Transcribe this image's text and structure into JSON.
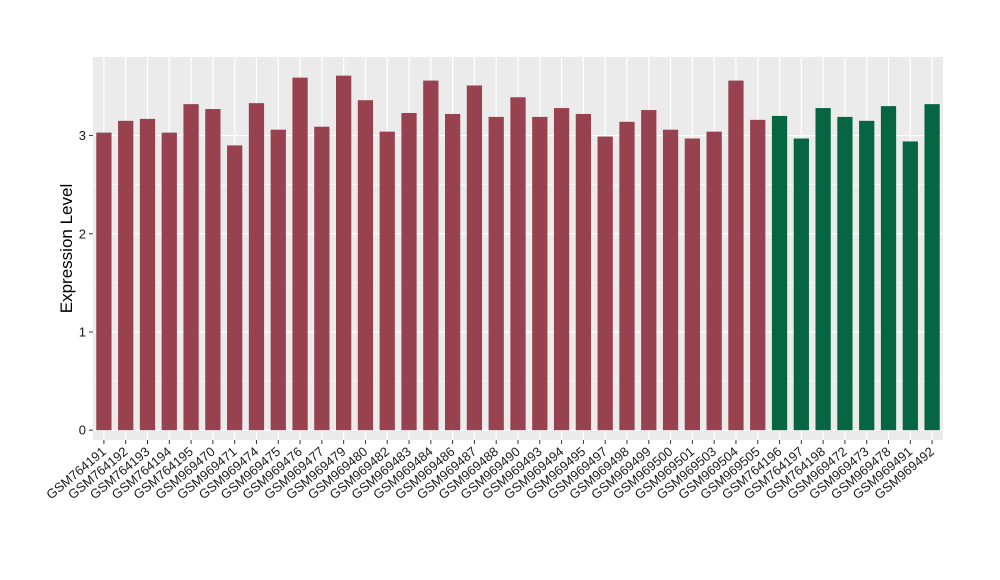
{
  "chart_data": {
    "type": "bar",
    "title": "",
    "xlabel": "",
    "ylabel": "Expression Level",
    "ylim": [
      -0.1,
      3.8
    ],
    "yticks": [
      0,
      1,
      2,
      3
    ],
    "grid": true,
    "legend": "none",
    "categories": [
      "GSM764191",
      "GSM764192",
      "GSM764193",
      "GSM764194",
      "GSM764195",
      "GSM969470",
      "GSM969471",
      "GSM969474",
      "GSM969475",
      "GSM969476",
      "GSM969477",
      "GSM969479",
      "GSM969480",
      "GSM969482",
      "GSM969483",
      "GSM969484",
      "GSM969486",
      "GSM969487",
      "GSM969488",
      "GSM969490",
      "GSM969493",
      "GSM969494",
      "GSM969495",
      "GSM969497",
      "GSM969498",
      "GSM969499",
      "GSM969500",
      "GSM969501",
      "GSM969503",
      "GSM969504",
      "GSM969505",
      "GSM764196",
      "GSM764197",
      "GSM764198",
      "GSM969472",
      "GSM969473",
      "GSM969478",
      "GSM969491",
      "GSM969492"
    ],
    "values": [
      3.03,
      3.15,
      3.17,
      3.03,
      3.32,
      3.27,
      2.9,
      3.33,
      3.06,
      3.59,
      3.09,
      3.61,
      3.36,
      3.04,
      3.23,
      3.56,
      3.22,
      3.51,
      3.19,
      3.39,
      3.19,
      3.28,
      3.22,
      2.99,
      3.14,
      3.26,
      3.06,
      2.97,
      3.04,
      3.56,
      3.16,
      3.2,
      2.97,
      3.28,
      3.19,
      3.15,
      3.3,
      2.94,
      3.32
    ],
    "groups": [
      "a",
      "a",
      "a",
      "a",
      "a",
      "a",
      "a",
      "a",
      "a",
      "a",
      "a",
      "a",
      "a",
      "a",
      "a",
      "a",
      "a",
      "a",
      "a",
      "a",
      "a",
      "a",
      "a",
      "a",
      "a",
      "a",
      "a",
      "a",
      "a",
      "a",
      "a",
      "b",
      "b",
      "b",
      "b",
      "b",
      "b",
      "b",
      "b"
    ],
    "colors": {
      "a": "#98414F",
      "b": "#066644",
      "panel_background": "#EBEBEB",
      "gridline": "#FFFFFF"
    }
  }
}
